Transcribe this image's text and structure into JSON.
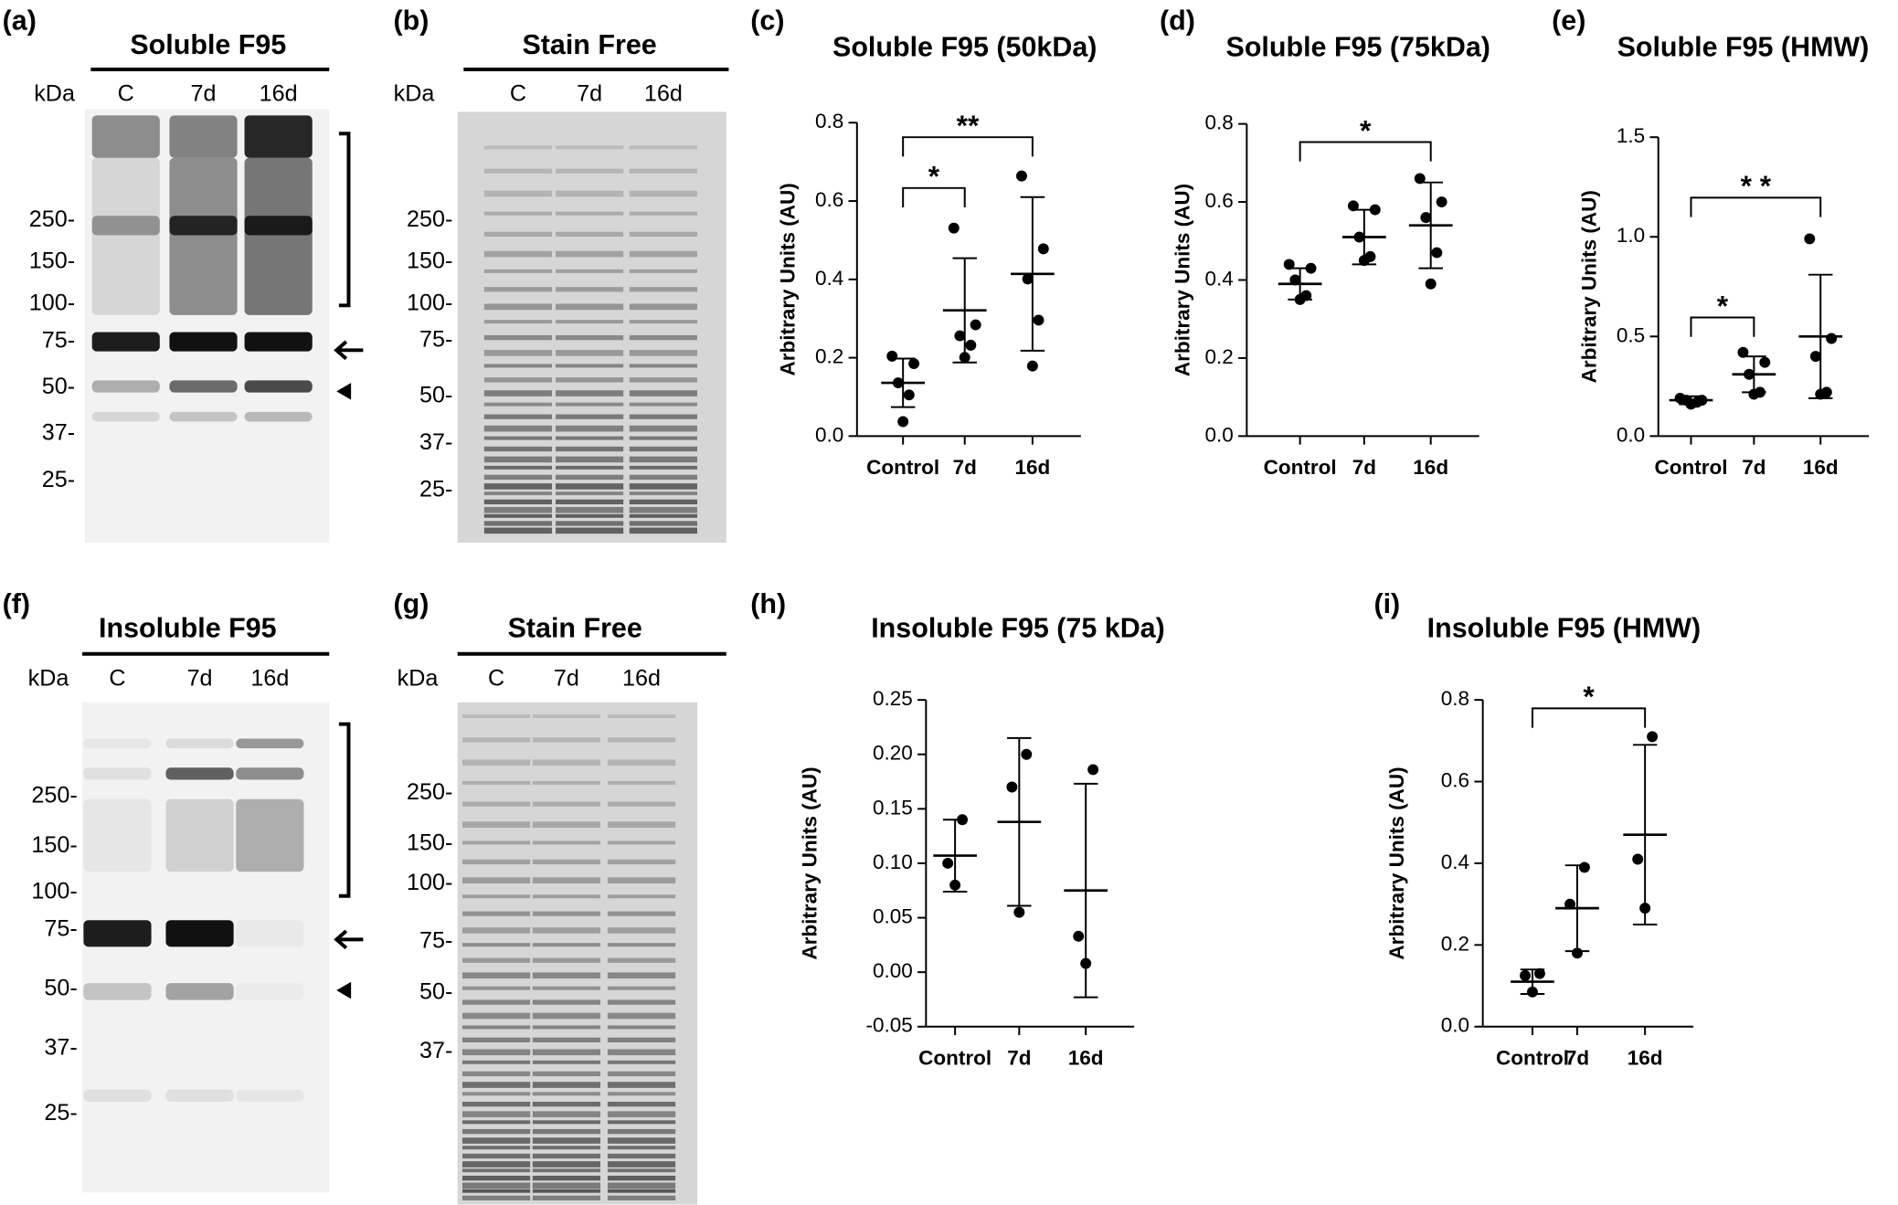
{
  "blots": [
    {
      "label": "(a)",
      "title": "Soluble F95",
      "unit": "kDa",
      "lanes": [
        "C",
        "7d",
        "16d"
      ],
      "markers": [
        "250-",
        "150-",
        "100-",
        "75-",
        "50-",
        "37-",
        "25-"
      ]
    },
    {
      "label": "(b)",
      "title": "Stain Free",
      "unit": "kDa",
      "lanes": [
        "C",
        "7d",
        "16d"
      ],
      "markers": [
        "250-",
        "150-",
        "100-",
        "75-",
        "50-",
        "37-",
        "25-"
      ]
    },
    {
      "label": "(f)",
      "title": "Insoluble F95",
      "unit": "kDa",
      "lanes": [
        "C",
        "7d",
        "16d"
      ],
      "markers": [
        "250-",
        "150-",
        "100-",
        "75-",
        "50-",
        "37-",
        "25-"
      ]
    },
    {
      "label": "(g)",
      "title": "Stain Free",
      "unit": "kDa",
      "lanes": [
        "C",
        "7d",
        "16d"
      ],
      "markers": [
        "250-",
        "150-",
        "100-",
        "75-",
        "50-",
        "37-"
      ]
    }
  ],
  "chart_data": [
    {
      "type": "scatter",
      "label": "(c)",
      "title": "Soluble F95 (50kDa)",
      "y_label": "Arbitrary Units (AU)",
      "categories": [
        "Control",
        "7d",
        "16d"
      ],
      "color": "#000000",
      "points": [
        [
          0.204,
          0.185,
          0.136,
          0.105,
          0.037
        ],
        [
          0.531,
          0.284,
          0.256,
          0.232,
          0.201
        ],
        [
          0.664,
          0.478,
          0.401,
          0.296,
          0.179
        ]
      ],
      "mean": [
        0.136,
        0.321,
        0.414
      ],
      "sd": [
        0.062,
        0.133,
        0.196
      ],
      "ylim": [
        0,
        0.8
      ],
      "yticks": [
        {
          "value": 0,
          "label": "0.0"
        },
        0.2,
        0.4,
        0.6,
        0.8
      ],
      "significance": [
        {
          "from": 0,
          "to": 1,
          "label": "*"
        },
        {
          "from": 0,
          "to": 2,
          "label": "**"
        }
      ]
    },
    {
      "type": "scatter",
      "label": "(d)",
      "title": "Soluble F95 (75kDa)",
      "y_label": "Arbitrary Units (AU)",
      "categories": [
        "Control",
        "7d",
        "16d"
      ],
      "color": "#000000",
      "points": [
        [
          0.44,
          0.43,
          0.4,
          0.36,
          0.35
        ],
        [
          0.59,
          0.58,
          0.51,
          0.46,
          0.45
        ],
        [
          0.66,
          0.6,
          0.56,
          0.47,
          0.39
        ]
      ],
      "mean": [
        0.39,
        0.51,
        0.54
      ],
      "sd": [
        0.04,
        0.07,
        0.11
      ],
      "ylim": [
        0,
        0.8
      ],
      "yticks": [
        {
          "value": 0,
          "label": "0.0"
        },
        0.2,
        0.4,
        0.6,
        0.8
      ],
      "significance": [
        {
          "from": 0,
          "to": 2,
          "label": "*"
        }
      ]
    },
    {
      "type": "scatter",
      "label": "(e)",
      "title": "Soluble F95 (HMW)",
      "y_label": "Arbitrary Units (AU)",
      "categories": [
        "Control",
        "7d",
        "16d"
      ],
      "color": "#000000",
      "points": [
        [
          0.19,
          0.18,
          0.18,
          0.17,
          0.16
        ],
        [
          0.42,
          0.37,
          0.31,
          0.22,
          0.21
        ],
        [
          0.99,
          0.49,
          0.4,
          0.22,
          0.21
        ]
      ],
      "mean": [
        0.18,
        0.31,
        0.5
      ],
      "sd": [
        0.02,
        0.09,
        0.31
      ],
      "ylim": [
        0,
        1.5
      ],
      "yticks": [
        {
          "value": 0,
          "label": "0.0"
        },
        0.5,
        {
          "value": 1,
          "label": "1.0"
        },
        1.5
      ],
      "significance": [
        {
          "from": 0,
          "to": 1,
          "label": "*"
        },
        {
          "from": 0,
          "to": 2,
          "label": "* *"
        }
      ]
    },
    {
      "type": "scatter",
      "label": "(h)",
      "title": "Insoluble F95 (75 kDa)",
      "y_label": "Arbitrary Units (AU)",
      "categories": [
        "Control",
        "7d",
        "16d"
      ],
      "color": "#000000",
      "points": [
        [
          0.14,
          0.1,
          0.08
        ],
        [
          0.2,
          0.17,
          0.055
        ],
        [
          0.186,
          0.033,
          0.008
        ]
      ],
      "mean": [
        0.107,
        0.138,
        0.075
      ],
      "sd": [
        0.033,
        0.077,
        0.098
      ],
      "ylim": [
        -0.05,
        0.25
      ],
      "yticks": [
        -0.05,
        {
          "value": 0,
          "label": "0.00"
        },
        0.05,
        {
          "value": 0.1,
          "label": "0.10"
        },
        0.15,
        {
          "value": 0.2,
          "label": "0.20"
        },
        0.25
      ],
      "significance": []
    },
    {
      "type": "scatter",
      "label": "(i)",
      "title": "Insoluble F95 (HMW)",
      "y_label": "Arbitrary Units (AU)",
      "categories": [
        "Control",
        "7d",
        "16d"
      ],
      "color": "#000000",
      "points": [
        [
          0.13,
          0.125,
          0.085
        ],
        [
          0.39,
          0.3,
          0.18
        ],
        [
          0.71,
          0.41,
          0.29
        ]
      ],
      "mean": [
        0.11,
        0.29,
        0.47
      ],
      "sd": [
        0.03,
        0.105,
        0.22
      ],
      "ylim": [
        0,
        0.8
      ],
      "yticks": [
        {
          "value": 0,
          "label": "0.0"
        },
        0.2,
        0.4,
        0.6,
        0.8
      ],
      "significance": [
        {
          "from": 0,
          "to": 2,
          "label": "*"
        }
      ]
    }
  ]
}
